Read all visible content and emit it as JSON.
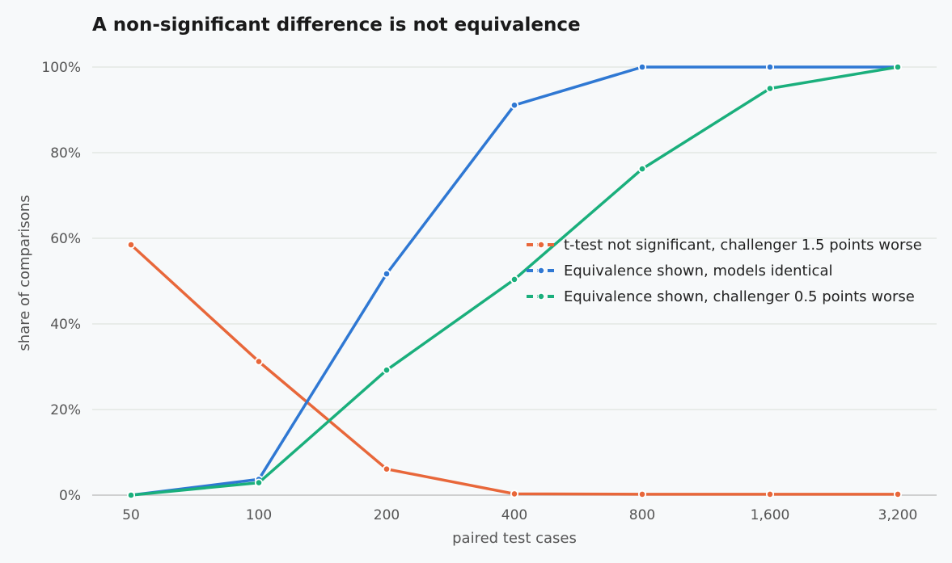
{
  "chart_data": {
    "type": "line",
    "title": "A non-significant difference is not equivalence",
    "xlabel": "paired test cases",
    "ylabel": "share of comparisons",
    "categories": [
      "50",
      "100",
      "200",
      "400",
      "800",
      "1,600",
      "3,200"
    ],
    "y_ticks": [
      "0%",
      "20%",
      "40%",
      "60%",
      "80%",
      "100%"
    ],
    "ylim": [
      0,
      100
    ],
    "grid": "horizontal",
    "legend_position": "right",
    "series": [
      {
        "name": "t-test not significant, challenger 1.5 points worse",
        "color": "#e8673a",
        "values": [
          58.5,
          31.2,
          6.1,
          0.3,
          0.2,
          0.2,
          0.2
        ]
      },
      {
        "name": "Equivalence shown, models identical",
        "color": "#2f78d3",
        "values": [
          0,
          3.7,
          51.7,
          91.1,
          100,
          100,
          100
        ]
      },
      {
        "name": "Equivalence shown, challenger 0.5 points worse",
        "color": "#1aaf7c",
        "values": [
          0,
          2.9,
          29.2,
          50.4,
          76.2,
          95,
          100
        ]
      }
    ]
  }
}
